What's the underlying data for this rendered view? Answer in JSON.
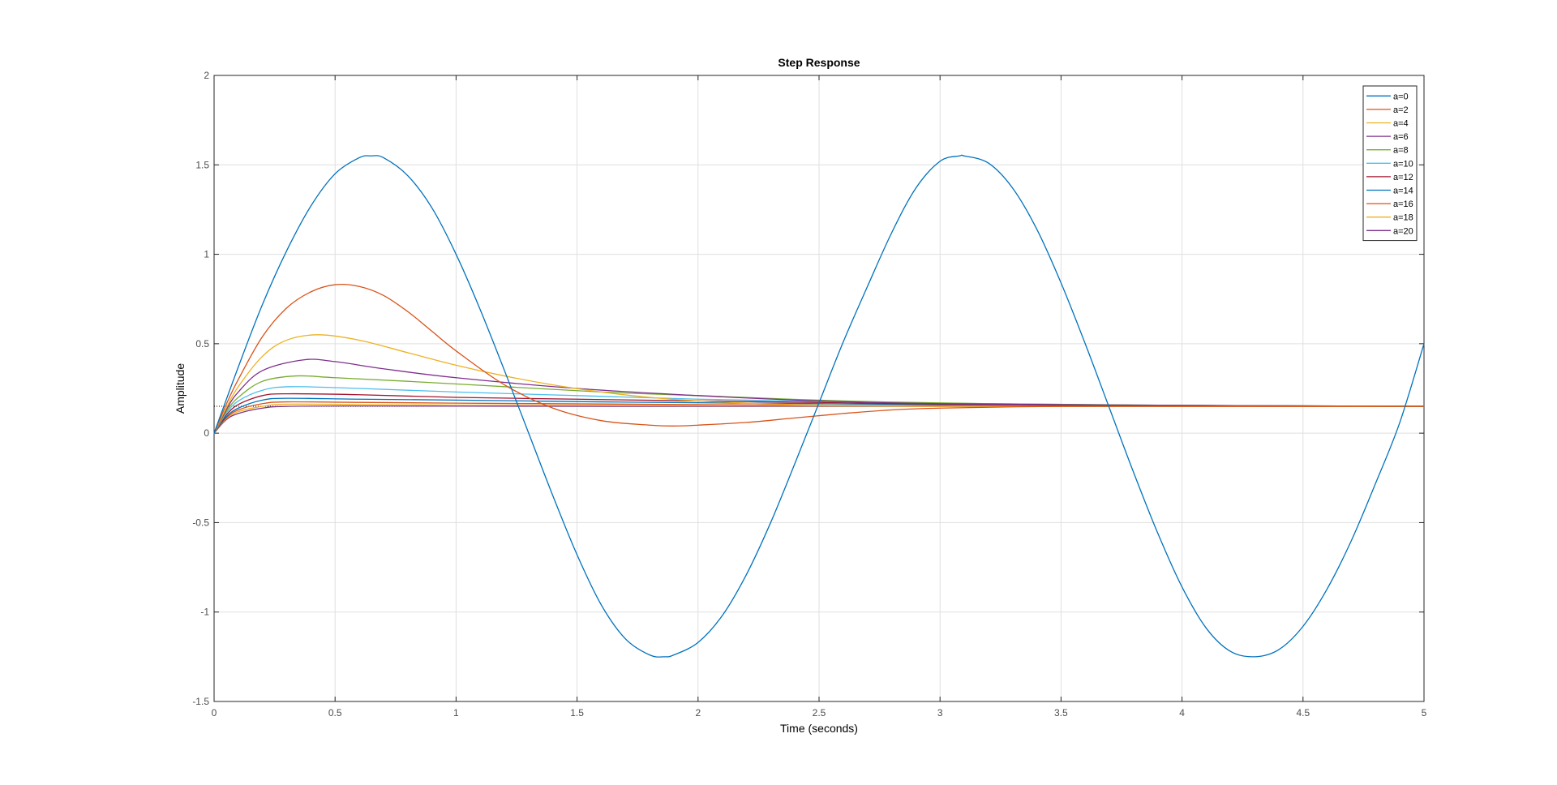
{
  "chart_data": {
    "type": "line",
    "title": "Step Response",
    "xlabel": "Time (seconds)",
    "ylabel": "Amplitude",
    "xlim": [
      0,
      5
    ],
    "ylim": [
      -1.5,
      2
    ],
    "xticks": [
      0,
      0.5,
      1,
      1.5,
      2,
      2.5,
      3,
      3.5,
      4,
      4.5,
      5
    ],
    "xtick_labels": [
      "0",
      "0.5",
      "1",
      "1.5",
      "2",
      "2.5",
      "3",
      "3.5",
      "4",
      "4.5",
      "5"
    ],
    "yticks": [
      -1.5,
      -1,
      -0.5,
      0,
      0.5,
      1,
      1.5,
      2
    ],
    "ytick_labels": [
      "-1.5",
      "-1",
      "-0.5",
      "0",
      "0.5",
      "1",
      "1.5",
      "2"
    ],
    "grid": true,
    "legend_position": "top-right",
    "final_value": 0.15,
    "series": [
      {
        "name": "a=0",
        "color": "#0072BD",
        "x": [
          0,
          0.1,
          0.2,
          0.3,
          0.4,
          0.5,
          0.6,
          0.65,
          0.7,
          0.8,
          0.9,
          1.0,
          1.1,
          1.2,
          1.3,
          1.4,
          1.5,
          1.6,
          1.7,
          1.8,
          1.86,
          1.9,
          2.0,
          2.1,
          2.2,
          2.3,
          2.4,
          2.5,
          2.6,
          2.7,
          2.8,
          2.9,
          3.0,
          3.08,
          3.1,
          3.2,
          3.3,
          3.4,
          3.5,
          3.6,
          3.7,
          3.8,
          3.9,
          4.0,
          4.1,
          4.2,
          4.3,
          4.4,
          4.5,
          4.6,
          4.7,
          4.8,
          4.9,
          5.0
        ],
        "y": [
          0,
          0.37,
          0.72,
          1.02,
          1.27,
          1.45,
          1.54,
          1.55,
          1.54,
          1.44,
          1.26,
          1.0,
          0.69,
          0.35,
          0.0,
          -0.35,
          -0.68,
          -0.96,
          -1.15,
          -1.24,
          -1.25,
          -1.24,
          -1.17,
          -1.02,
          -0.79,
          -0.5,
          -0.17,
          0.17,
          0.51,
          0.82,
          1.12,
          1.37,
          1.52,
          1.55,
          1.55,
          1.51,
          1.37,
          1.14,
          0.84,
          0.5,
          0.14,
          -0.22,
          -0.56,
          -0.86,
          -1.09,
          -1.22,
          -1.25,
          -1.21,
          -1.08,
          -0.87,
          -0.6,
          -0.28,
          0.06,
          0.5
        ]
      },
      {
        "name": "a=2",
        "color": "#D95319",
        "x": [
          0,
          0.05,
          0.1,
          0.2,
          0.3,
          0.4,
          0.5,
          0.6,
          0.7,
          0.8,
          0.9,
          1.0,
          1.2,
          1.4,
          1.6,
          1.8,
          1.9,
          2.0,
          2.2,
          2.4,
          2.6,
          2.8,
          3.0,
          3.5,
          4.0,
          4.5,
          5.0
        ],
        "y": [
          0,
          0.16,
          0.3,
          0.54,
          0.7,
          0.79,
          0.83,
          0.82,
          0.77,
          0.68,
          0.57,
          0.46,
          0.27,
          0.14,
          0.07,
          0.045,
          0.04,
          0.045,
          0.06,
          0.085,
          0.11,
          0.13,
          0.14,
          0.15,
          0.15,
          0.15,
          0.15
        ]
      },
      {
        "name": "a=4",
        "color": "#EDB120",
        "x": [
          0,
          0.05,
          0.1,
          0.2,
          0.3,
          0.43,
          0.6,
          0.8,
          1.0,
          1.2,
          1.4,
          1.6,
          1.8,
          2.0,
          2.4,
          3.0,
          4.0,
          5.0
        ],
        "y": [
          0,
          0.14,
          0.26,
          0.43,
          0.52,
          0.55,
          0.52,
          0.45,
          0.38,
          0.32,
          0.27,
          0.23,
          0.2,
          0.18,
          0.16,
          0.15,
          0.15,
          0.15
        ]
      },
      {
        "name": "a=6",
        "color": "#7E2F8E",
        "x": [
          0,
          0.05,
          0.1,
          0.2,
          0.37,
          0.5,
          0.7,
          1.0,
          1.5,
          2.0,
          2.5,
          3.0,
          4.0,
          5.0
        ],
        "y": [
          0,
          0.13,
          0.23,
          0.35,
          0.41,
          0.4,
          0.36,
          0.31,
          0.25,
          0.21,
          0.18,
          0.165,
          0.155,
          0.15
        ]
      },
      {
        "name": "a=8",
        "color": "#77AC30",
        "x": [
          0,
          0.05,
          0.1,
          0.2,
          0.34,
          0.5,
          0.8,
          1.2,
          1.6,
          2.0,
          2.6,
          3.2,
          4.0,
          5.0
        ],
        "y": [
          0,
          0.12,
          0.2,
          0.29,
          0.32,
          0.31,
          0.29,
          0.26,
          0.23,
          0.21,
          0.18,
          0.165,
          0.155,
          0.15
        ]
      },
      {
        "name": "a=10",
        "color": "#4DBEEE",
        "x": [
          0,
          0.05,
          0.1,
          0.2,
          0.32,
          0.6,
          1.0,
          1.5,
          2.0,
          2.6,
          3.2,
          4.0,
          5.0
        ],
        "y": [
          0,
          0.11,
          0.18,
          0.24,
          0.26,
          0.25,
          0.23,
          0.21,
          0.19,
          0.175,
          0.165,
          0.155,
          0.15
        ]
      },
      {
        "name": "a=12",
        "color": "#A2142F",
        "x": [
          0,
          0.05,
          0.1,
          0.2,
          0.3,
          0.6,
          1.0,
          1.5,
          2.0,
          2.6,
          3.2,
          4.0,
          5.0
        ],
        "y": [
          0,
          0.1,
          0.16,
          0.21,
          0.22,
          0.215,
          0.2,
          0.19,
          0.18,
          0.17,
          0.16,
          0.155,
          0.15
        ]
      },
      {
        "name": "a=14",
        "color": "#0072BD",
        "x": [
          0,
          0.05,
          0.1,
          0.2,
          0.3,
          0.6,
          1.0,
          1.6,
          2.2,
          3.0,
          4.0,
          5.0
        ],
        "y": [
          0,
          0.09,
          0.14,
          0.185,
          0.195,
          0.19,
          0.185,
          0.175,
          0.168,
          0.16,
          0.155,
          0.15
        ]
      },
      {
        "name": "a=16",
        "color": "#D95319",
        "x": [
          0,
          0.05,
          0.1,
          0.2,
          0.3,
          0.6,
          1.0,
          1.6,
          2.2,
          3.0,
          4.0,
          5.0
        ],
        "y": [
          0,
          0.085,
          0.13,
          0.165,
          0.175,
          0.172,
          0.168,
          0.163,
          0.158,
          0.154,
          0.151,
          0.15
        ]
      },
      {
        "name": "a=18",
        "color": "#EDB120",
        "x": [
          0,
          0.05,
          0.1,
          0.2,
          0.3,
          0.6,
          1.0,
          1.6,
          2.2,
          3.0,
          4.0,
          5.0
        ],
        "y": [
          0,
          0.08,
          0.12,
          0.15,
          0.162,
          0.16,
          0.157,
          0.155,
          0.153,
          0.151,
          0.15,
          0.15
        ]
      },
      {
        "name": "a=20",
        "color": "#7E2F8E",
        "x": [
          0,
          0.05,
          0.1,
          0.2,
          0.3,
          0.6,
          1.0,
          1.6,
          2.2,
          3.0,
          4.0,
          5.0
        ],
        "y": [
          0,
          0.075,
          0.11,
          0.14,
          0.15,
          0.152,
          0.151,
          0.15,
          0.15,
          0.15,
          0.15,
          0.15
        ]
      }
    ]
  }
}
